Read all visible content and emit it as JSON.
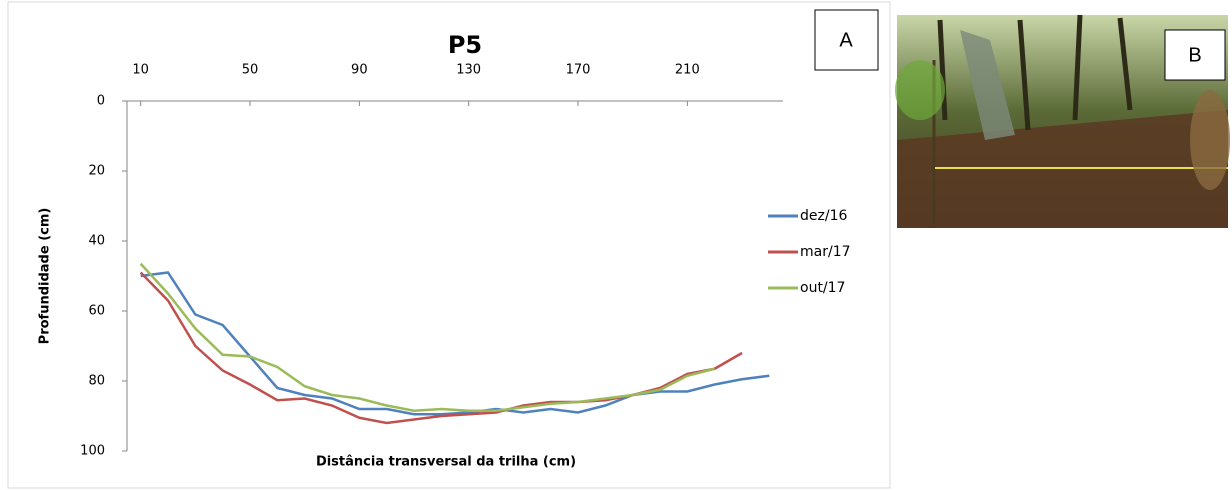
{
  "chart_data": {
    "type": "line",
    "title": "P5",
    "x_label": "Distância transversal da trilha (cm)",
    "y_label": "Profundidade (cm)",
    "annotations": [
      "A",
      "B"
    ],
    "x": [
      10,
      20,
      30,
      40,
      50,
      60,
      70,
      80,
      90,
      100,
      110,
      120,
      130,
      140,
      150,
      160,
      170,
      180,
      190,
      200,
      210,
      220,
      230,
      240
    ],
    "series": [
      {
        "name": "dez/16",
        "color": "#4f81bd",
        "values": [
          50,
          49,
          61,
          64,
          73,
          82,
          84,
          85,
          88,
          88,
          89.5,
          89.5,
          89,
          88,
          89,
          88,
          89,
          87,
          84,
          83,
          83,
          81,
          79.5,
          78.5
        ]
      },
      {
        "name": "mar/17",
        "color": "#c0504d",
        "values": [
          49,
          57,
          70,
          77,
          81,
          85.5,
          85,
          87,
          90.5,
          92,
          91,
          90,
          89.5,
          89,
          87,
          86,
          86,
          85.5,
          84,
          82,
          78,
          76.5,
          72,
          null
        ]
      },
      {
        "name": "out/17",
        "color": "#9bbb59",
        "values": [
          46.5,
          55,
          65,
          72.5,
          73,
          76,
          81.5,
          84,
          85,
          87,
          88.5,
          88,
          88.5,
          88.5,
          87.5,
          86.5,
          86,
          85,
          84,
          82.5,
          78.5,
          76.5,
          null,
          null
        ]
      }
    ],
    "xlim": [
      5,
      245
    ],
    "xticks": [
      10,
      50,
      90,
      130,
      170,
      210
    ],
    "ylim": [
      0,
      100
    ],
    "yticks": [
      0,
      20,
      40,
      60,
      80,
      100
    ],
    "y_inverted": true,
    "legend": "right"
  }
}
